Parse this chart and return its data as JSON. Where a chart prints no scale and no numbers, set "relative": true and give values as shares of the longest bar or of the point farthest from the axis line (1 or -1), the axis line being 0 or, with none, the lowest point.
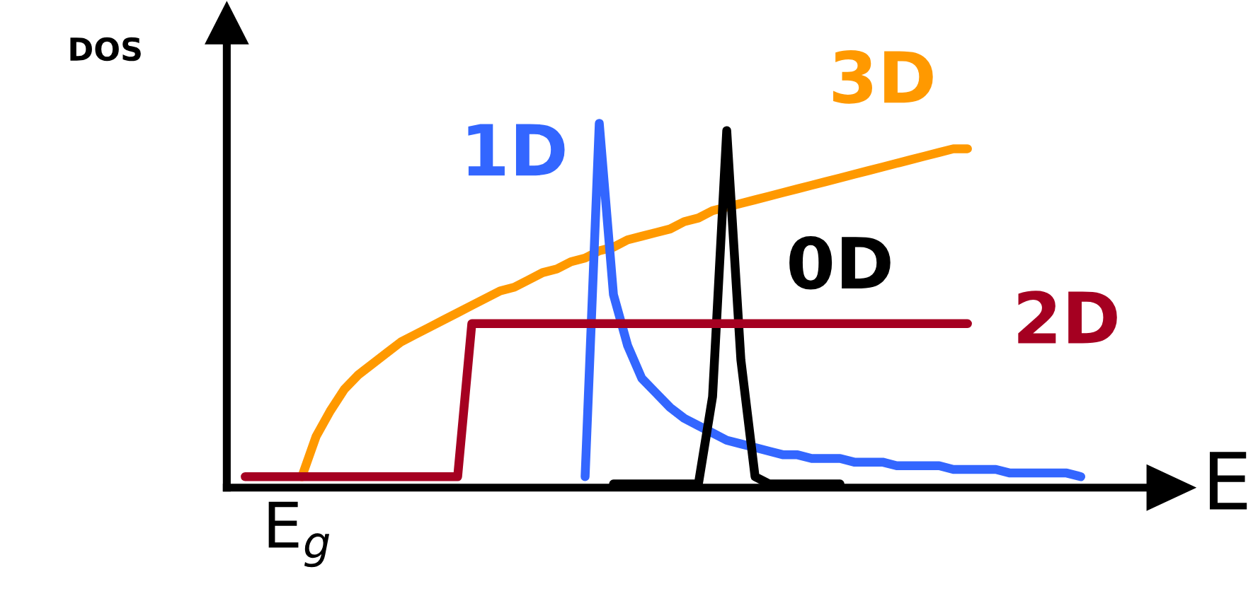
{
  "chart_data": {
    "type": "line",
    "relative": true,
    "xlabel": "E",
    "ylabel": "DOS",
    "annotations": [
      "E$_{g}$"
    ],
    "categories": [
      null,
      null,
      null,
      null,
      null,
      null,
      null,
      null,
      null,
      null,
      null,
      null,
      null,
      null,
      null,
      null,
      null,
      null,
      null,
      null,
      null,
      null,
      null,
      null,
      null,
      null,
      null,
      null,
      null,
      null,
      null,
      null,
      null,
      null,
      null,
      null,
      null,
      null,
      null,
      null,
      null,
      null,
      null,
      null,
      null,
      null,
      null,
      null,
      null,
      null,
      null,
      null,
      null,
      null,
      null,
      null,
      null,
      null,
      null,
      null,
      null,
      null,
      null,
      null,
      null,
      null
    ],
    "series": [
      {
        "name": "3D",
        "color": "#ff9900",
        "values": [
          null,
          null,
          null,
          null,
          null,
          0.03,
          0.14,
          0.21,
          0.27,
          0.31,
          0.34,
          0.37,
          0.4,
          0.42,
          0.44,
          0.46,
          0.48,
          0.5,
          0.52,
          0.54,
          0.55,
          0.57,
          0.59,
          0.6,
          0.62,
          0.63,
          0.65,
          0.66,
          0.68,
          0.69,
          0.7,
          0.71,
          0.73,
          0.74,
          0.76,
          0.77,
          0.78,
          0.79,
          0.8,
          0.81,
          0.82,
          0.83,
          0.84,
          0.85,
          0.86,
          0.87,
          0.88,
          0.89,
          0.9,
          0.91,
          0.92,
          0.93,
          0.93,
          null,
          null,
          null,
          null,
          null,
          null,
          null,
          null,
          null,
          null,
          null,
          null,
          null
        ]
      },
      {
        "name": "1D",
        "color": "#3366ff",
        "values": [
          null,
          null,
          null,
          null,
          null,
          null,
          null,
          null,
          null,
          null,
          null,
          null,
          null,
          null,
          null,
          null,
          null,
          null,
          null,
          null,
          null,
          null,
          null,
          null,
          null,
          0.03,
          1,
          0.53,
          0.39,
          0.3,
          0.26,
          0.22,
          0.19,
          0.17,
          0.15,
          0.13,
          0.12,
          0.11,
          0.1,
          0.09,
          0.09,
          0.08,
          0.08,
          0.08,
          0.07,
          0.07,
          0.07,
          0.06,
          0.06,
          0.06,
          0.06,
          0.05,
          0.05,
          0.05,
          0.05,
          0.04,
          0.04,
          0.04,
          0.04,
          0.04,
          0.03,
          null,
          null,
          null,
          null,
          null
        ]
      },
      {
        "name": "0D",
        "color": "#000000",
        "values": [
          null,
          null,
          null,
          null,
          null,
          null,
          null,
          null,
          null,
          null,
          null,
          null,
          null,
          null,
          null,
          null,
          null,
          null,
          null,
          null,
          null,
          null,
          null,
          null,
          null,
          null,
          null,
          0.01,
          0.01,
          0.01,
          0.01,
          0.01,
          0.01,
          0.01,
          0.25,
          0.98,
          0.35,
          0.03,
          0.01,
          0.01,
          0.01,
          0.01,
          0.01,
          0.01,
          null,
          null,
          null,
          null,
          null,
          null,
          null,
          null,
          null,
          null,
          null,
          null,
          null,
          null,
          null,
          null,
          null,
          null,
          null,
          null,
          null,
          null
        ]
      },
      {
        "name": "2D",
        "color": "#a50021",
        "values": [
          null,
          0.03,
          0.03,
          0.03,
          0.03,
          0.03,
          0.03,
          0.03,
          0.03,
          0.03,
          0.03,
          0.03,
          0.03,
          0.03,
          0.03,
          0.03,
          0.03,
          0.45,
          0.45,
          0.45,
          0.45,
          0.45,
          0.45,
          0.45,
          0.45,
          0.45,
          0.45,
          0.45,
          0.45,
          0.45,
          0.45,
          0.45,
          0.45,
          0.45,
          0.45,
          0.45,
          0.45,
          0.45,
          0.45,
          0.45,
          0.45,
          0.45,
          0.45,
          0.45,
          0.45,
          0.45,
          0.45,
          0.45,
          0.45,
          0.45,
          0.45,
          0.45,
          0.45,
          null,
          null,
          null,
          null,
          null,
          null,
          null,
          null,
          null,
          null,
          null,
          null,
          null
        ]
      }
    ]
  }
}
